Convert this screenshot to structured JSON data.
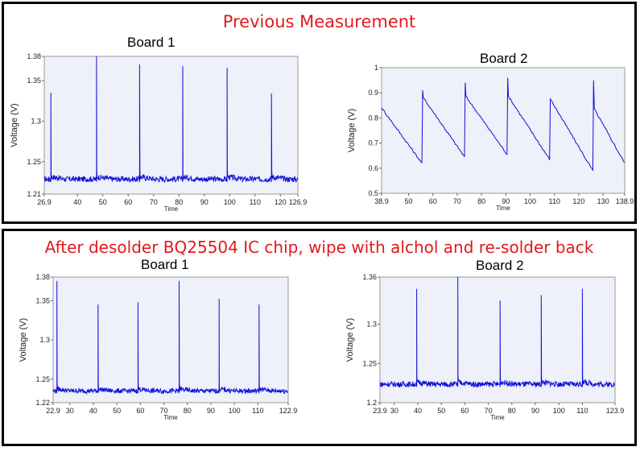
{
  "headings": {
    "top": "Previous Measurement",
    "bottom": "After desolder BQ25504 IC chip, wipe with alchol and re-solder back"
  },
  "colors": {
    "trace": "#1010d8",
    "plot_bg": "#eef0fa",
    "heading": "#e0191e"
  },
  "chart_data": [
    {
      "type": "line",
      "title": "Board 1",
      "xlabel": "Time",
      "ylabel": "Voltage (V)",
      "xlim": [
        26.9,
        126.9
      ],
      "ylim": [
        1.21,
        1.38
      ],
      "xticks": [
        "26.9",
        "40",
        "50",
        "60",
        "70",
        "80",
        "90",
        "100",
        "110",
        "120",
        "126.9"
      ],
      "yticks": [
        "1.21",
        "1.25",
        "1.3",
        "1.35",
        "1.38"
      ],
      "series": [
        {
          "shape": "spikes",
          "baseline": 1.225,
          "noise_top": 1.232,
          "spikes": [
            [
              29.5,
              1.335
            ],
            [
              47.5,
              1.38
            ],
            [
              64.5,
              1.37
            ],
            [
              81.5,
              1.368
            ],
            [
              99,
              1.366
            ],
            [
              116.5,
              1.334
            ]
          ]
        }
      ]
    },
    {
      "type": "line",
      "title": "Board 2",
      "xlabel": "Time",
      "ylabel": "Voltage (V)",
      "xlim": [
        38.9,
        138.9
      ],
      "ylim": [
        0.5,
        1
      ],
      "xticks": [
        "38.9",
        "50",
        "60",
        "70",
        "80",
        "90",
        "100",
        "110",
        "120",
        "130",
        "138.9"
      ],
      "yticks": [
        "0.5",
        "0.6",
        "0.7",
        "0.8",
        "0.9",
        "1"
      ],
      "series": [
        {
          "shape": "sawtooth",
          "start": [
            38.9,
            0.84
          ],
          "cycles": [
            [
              55.5,
              0.62,
              0.88,
              0.91
            ],
            [
              73,
              0.645,
              0.885,
              0.94
            ],
            [
              90.5,
              0.655,
              0.885,
              0.96
            ],
            [
              108,
              0.635,
              0.87,
              0.875
            ],
            [
              125.8,
              0.59,
              0.835,
              0.95
            ]
          ],
          "end": [
            138.9,
            0.62
          ]
        }
      ]
    },
    {
      "type": "line",
      "title": "Board 1",
      "xlabel": "Time",
      "ylabel": "Voltage (V)",
      "xlim": [
        22.9,
        122.9
      ],
      "ylim": [
        1.22,
        1.38
      ],
      "xticks": [
        "22.9",
        "30",
        "40",
        "50",
        "60",
        "70",
        "80",
        "90",
        "100",
        "110",
        "122.9"
      ],
      "yticks": [
        "1.22",
        "1.25",
        "1.3",
        "1.35",
        "1.38"
      ],
      "series": [
        {
          "shape": "spikes",
          "baseline": 1.232,
          "noise_top": 1.238,
          "spikes": [
            [
              24.5,
              1.375
            ],
            [
              42,
              1.345
            ],
            [
              59,
              1.348
            ],
            [
              76.5,
              1.375
            ],
            [
              93.5,
              1.352
            ],
            [
              110.5,
              1.345
            ]
          ]
        }
      ]
    },
    {
      "type": "line",
      "title": "Board 2",
      "xlabel": "Time",
      "ylabel": "Voltage (V)",
      "xlim": [
        23.9,
        123.9
      ],
      "ylim": [
        1.2,
        1.36
      ],
      "xticks": [
        "23.9",
        "30",
        "40",
        "50",
        "60",
        "70",
        "80",
        "90",
        "100",
        "110",
        "123.9"
      ],
      "yticks": [
        "1.2",
        "1.25",
        "1.3",
        "1.36"
      ],
      "series": [
        {
          "shape": "spikes",
          "baseline": 1.22,
          "noise_top": 1.227,
          "spikes": [
            [
              39.5,
              1.345
            ],
            [
              57,
              1.36
            ],
            [
              75,
              1.33
            ],
            [
              92.5,
              1.337
            ],
            [
              110,
              1.345
            ]
          ]
        }
      ]
    }
  ]
}
